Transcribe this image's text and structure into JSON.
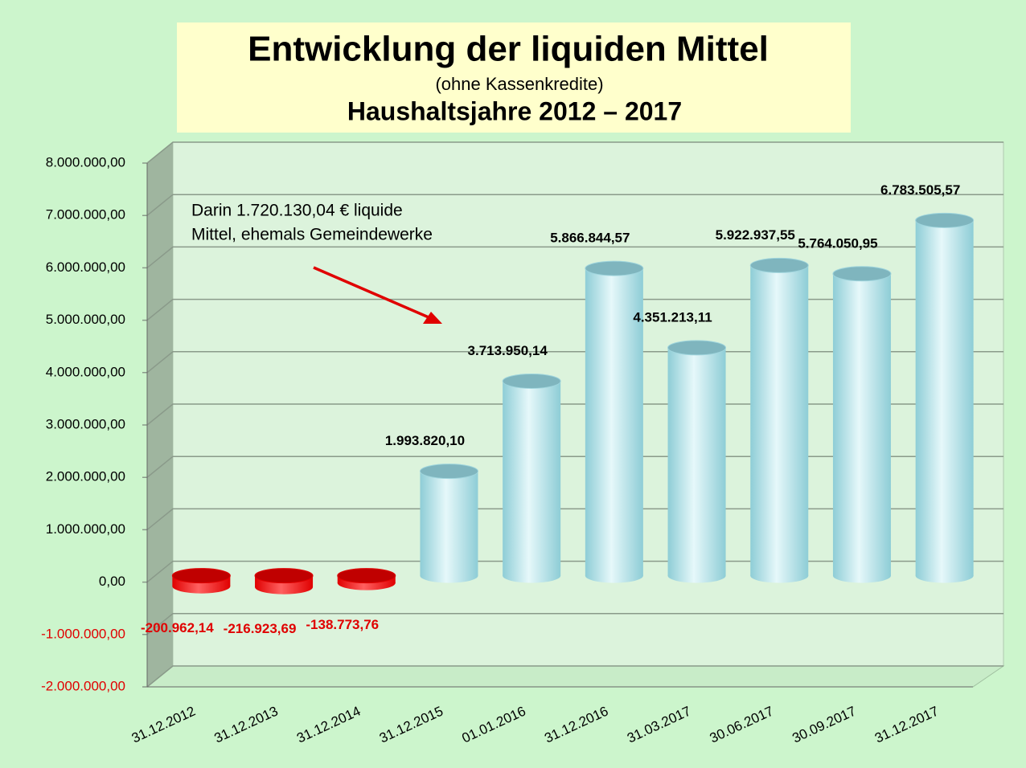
{
  "chart_data": {
    "type": "bar",
    "title": "Entwicklung der liquiden Mittel",
    "subtitle": "(ohne Kassenkredite)",
    "subtitle2": "Haushaltsjahre 2012 – 2017",
    "annotation": [
      "Darin 1.720.130,04 € liquide",
      "Mittel, ehemals Gemeindewerke"
    ],
    "categories": [
      "31.12.2012",
      "31.12.2013",
      "31.12.2014",
      "31.12.2015",
      "01.01.2016",
      "31.12.2016",
      "31.03.2017",
      "30.06.2017",
      "30.09.2017",
      "31.12.2017"
    ],
    "values": [
      -200962.14,
      -216923.69,
      -138773.76,
      1993820.1,
      3713950.14,
      5866844.57,
      4351213.11,
      5922937.55,
      5764050.95,
      6783505.57
    ],
    "value_labels": [
      "-200.962,14",
      "-216.923,69",
      "-138.773,76",
      "1.993.820,10",
      "3.713.950,14",
      "5.866.844,57",
      "4.351.213,11",
      "5.922.937,55",
      "5.764.050,95",
      "6.783.505,57"
    ],
    "color": "#8ecdd6",
    "negative_color": "#e00000",
    "ylim": [
      -2000000,
      8000000
    ],
    "yticks": [
      {
        "value": -2000000,
        "label": "-2.000.000,00"
      },
      {
        "value": -1000000,
        "label": "-1.000.000,00"
      },
      {
        "value": 0,
        "label": "0,00"
      },
      {
        "value": 1000000,
        "label": "1.000.000,00"
      },
      {
        "value": 2000000,
        "label": "2.000.000,00"
      },
      {
        "value": 3000000,
        "label": "3.000.000,00"
      },
      {
        "value": 4000000,
        "label": "4.000.000,00"
      },
      {
        "value": 5000000,
        "label": "5.000.000,00"
      },
      {
        "value": 6000000,
        "label": "6.000.000,00"
      },
      {
        "value": 7000000,
        "label": "7.000.000,00"
      },
      {
        "value": 8000000,
        "label": "8.000.000,00"
      }
    ],
    "grid": true
  }
}
